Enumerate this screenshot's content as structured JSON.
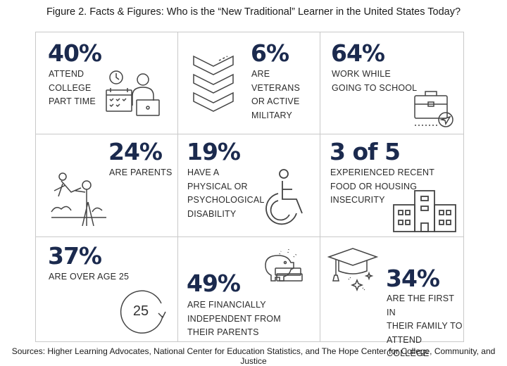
{
  "title": "Figure 2. Facts & Figures: Who is the “New Traditional” Learner in the United States Today?",
  "cells": [
    {
      "stat": "40%",
      "lines": [
        "Attend",
        "College",
        "Part Time"
      ],
      "icon": "calendar-student-icon"
    },
    {
      "stat": "6%",
      "lines": [
        "Are Veterans",
        "or Active",
        "Military"
      ],
      "icon": "military-chevrons-icon"
    },
    {
      "stat": "64%",
      "lines": [
        "Work While",
        "Going to School"
      ],
      "icon": "briefcase-icon"
    },
    {
      "stat": "24%",
      "lines": [
        "Are Parents"
      ],
      "icon": "parent-child-icon"
    },
    {
      "stat": "19%",
      "lines": [
        "Have a",
        "Physical or",
        "Psychological",
        "Disability"
      ],
      "icon": "wheelchair-icon"
    },
    {
      "stat": "3 of 5",
      "lines": [
        "Experienced Recent",
        "Food or Housing",
        "Insecurity"
      ],
      "icon": "building-icon"
    },
    {
      "stat": "37%",
      "lines": [
        "Are Over Age 25"
      ],
      "icon": "age-25-icon",
      "icon_text": "25"
    },
    {
      "stat": "49%",
      "lines": [
        "Are Financially",
        "Independent From",
        "Their Parents"
      ],
      "icon": "piggy-bank-icon"
    },
    {
      "stat": "34%",
      "lines": [
        "Are the First in",
        "Their Family to",
        "Attend College"
      ],
      "icon": "graduation-cap-icon"
    }
  ],
  "sources": "Sources: Higher Learning Advocates, National Center for Education Statistics, and The Hope Center for College, Community, and Justice",
  "colors": {
    "accent": "#1b2a4e",
    "text": "#2b2b2b",
    "border": "#c9c9c9",
    "icon": "#444444"
  }
}
